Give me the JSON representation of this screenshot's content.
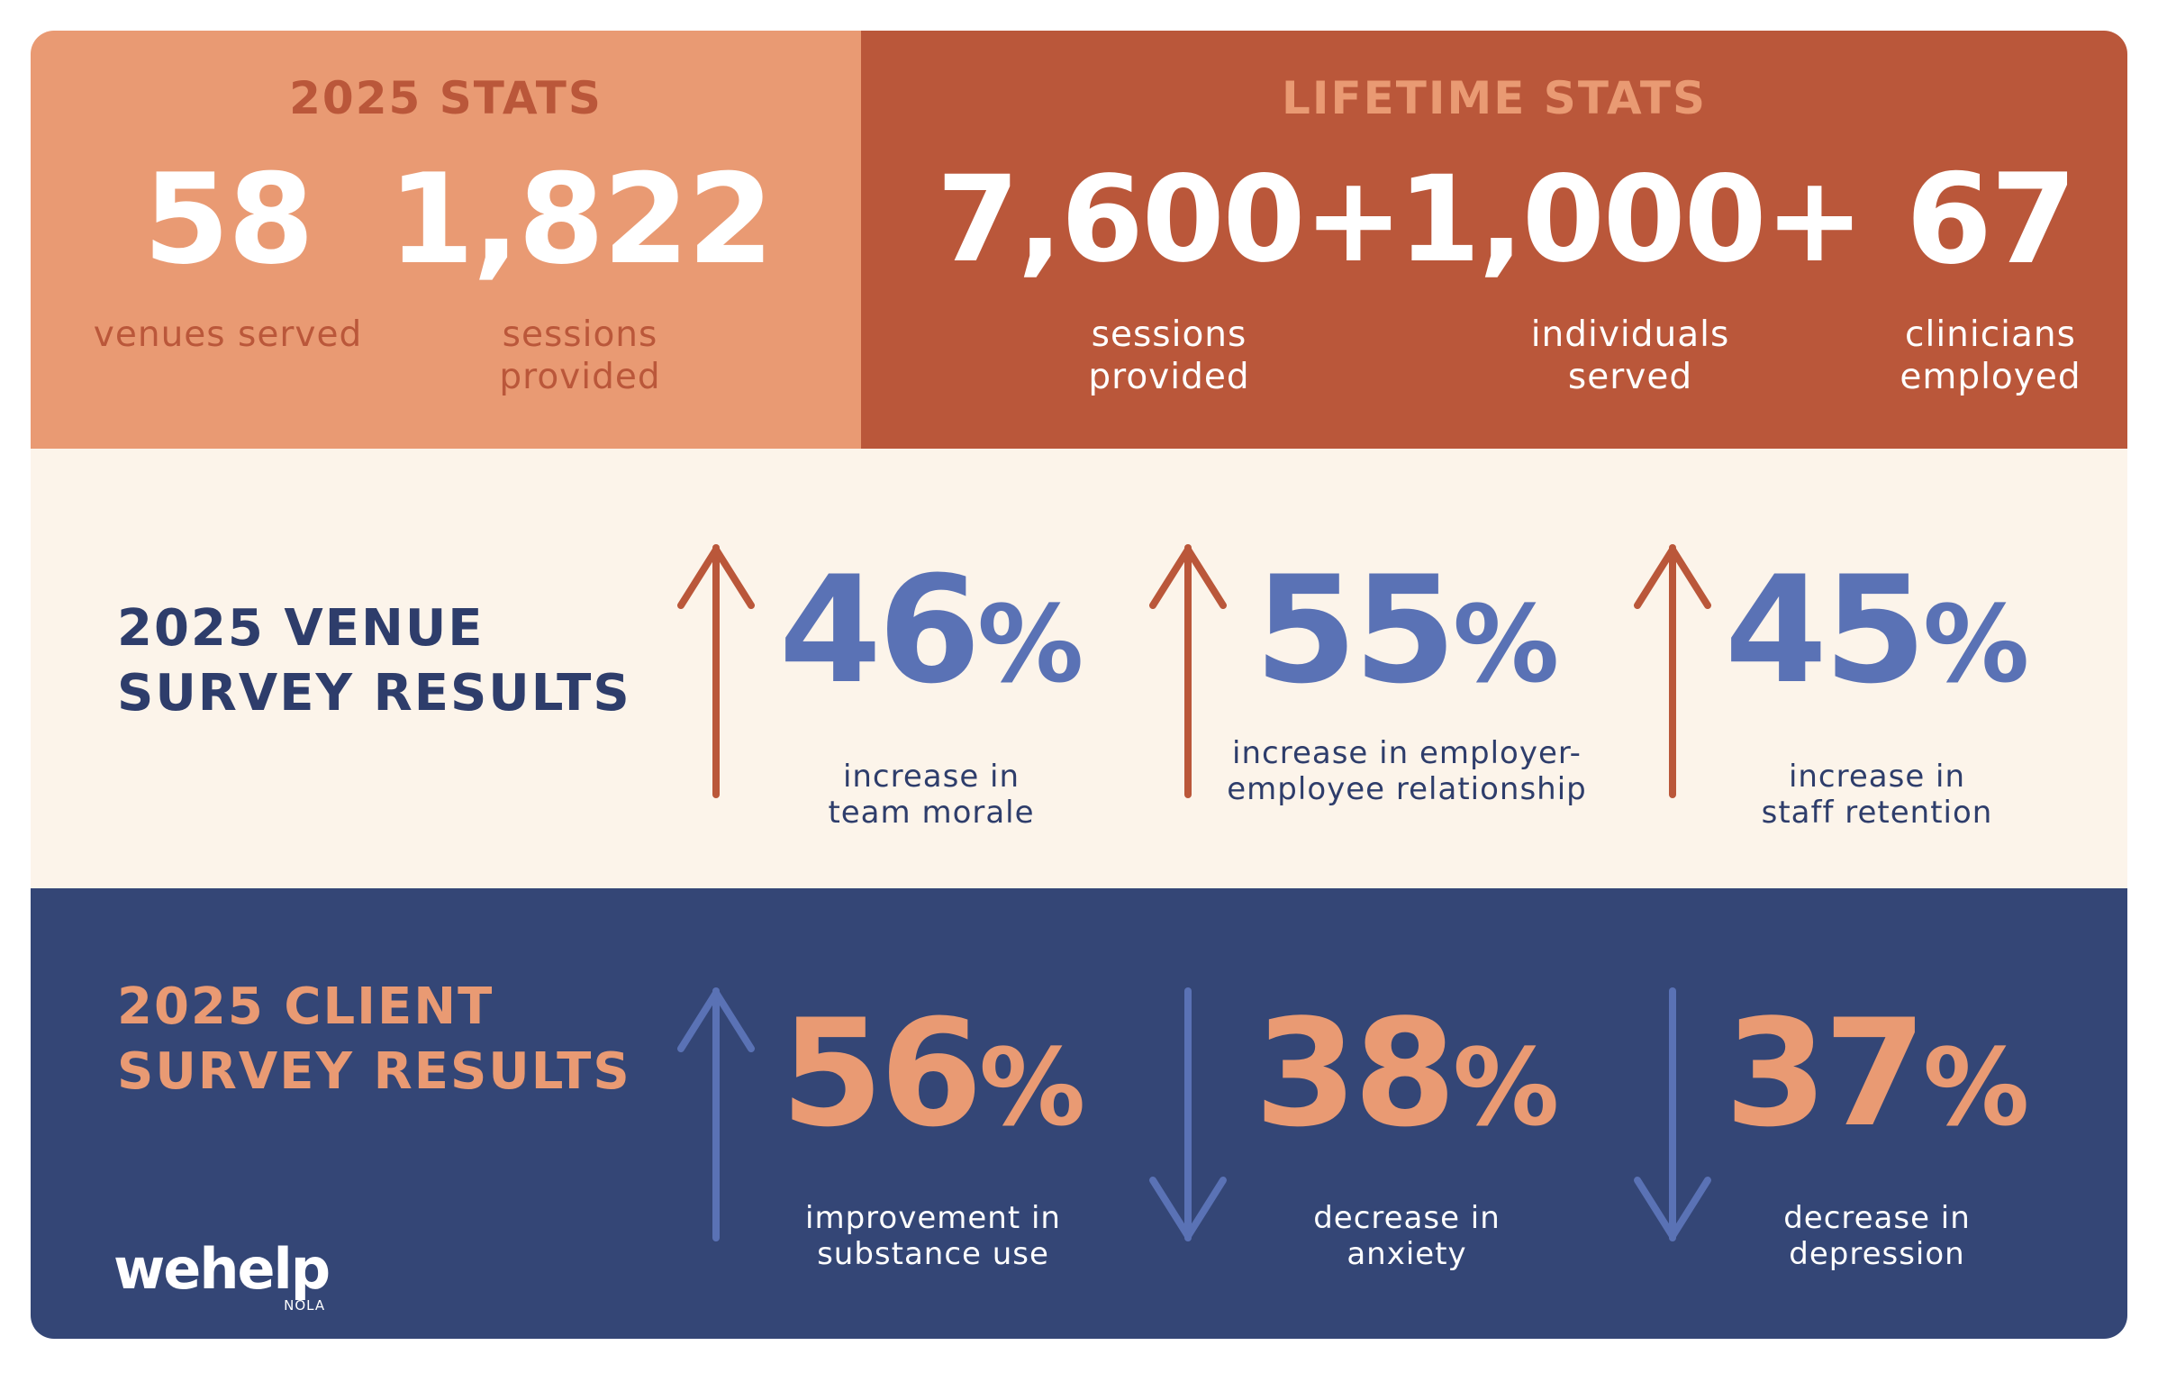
{
  "colors": {
    "peach": "#E99A73",
    "rust": "#BA573A",
    "cream": "#FCF4EA",
    "navy": "#344676",
    "blue": "#5A72B5",
    "dark_navy": "#2E3D6B",
    "white": "#FFFFFF"
  },
  "stats_2025": {
    "title": "2025 STATS",
    "items": [
      {
        "value": "58",
        "label": "venues served"
      },
      {
        "value": "1,822",
        "label": "sessions provided"
      }
    ]
  },
  "lifetime_stats": {
    "title": "LIFETIME STATS",
    "items": [
      {
        "value": "7,600+",
        "label": "sessions provided"
      },
      {
        "value": "1,000+",
        "label": "individuals served"
      },
      {
        "value": "67",
        "label": "clinicians employed"
      }
    ]
  },
  "venue_survey": {
    "title_line1": "2025 VENUE",
    "title_line2": "SURVEY RESULTS",
    "items": [
      {
        "value": "46",
        "unit": "%",
        "direction": "up",
        "arrow_icon": "arrow-up-icon",
        "label": "increase in team morale"
      },
      {
        "value": "55",
        "unit": "%",
        "direction": "up",
        "arrow_icon": "arrow-up-icon",
        "label": "increase in employer-employee relationship"
      },
      {
        "value": "45",
        "unit": "%",
        "direction": "up",
        "arrow_icon": "arrow-up-icon",
        "label": "increase in staff retention"
      }
    ]
  },
  "client_survey": {
    "title_line1": "2025 CLIENT",
    "title_line2": "SURVEY RESULTS",
    "items": [
      {
        "value": "56",
        "unit": "%",
        "direction": "up",
        "arrow_icon": "arrow-up-icon",
        "label": "improvement in substance use"
      },
      {
        "value": "38",
        "unit": "%",
        "direction": "down",
        "arrow_icon": "arrow-down-icon",
        "label": "decrease in anxiety"
      },
      {
        "value": "37",
        "unit": "%",
        "direction": "down",
        "arrow_icon": "arrow-down-icon",
        "label": "decrease in depression"
      }
    ]
  },
  "logo": {
    "wordmark": "wehelp",
    "subtext": "NOLA"
  }
}
